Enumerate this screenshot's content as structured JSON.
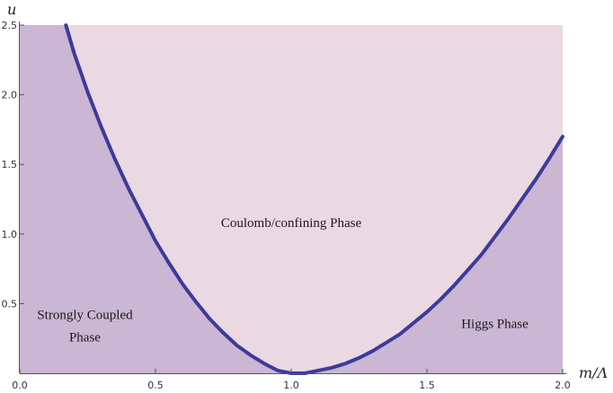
{
  "chart_data": {
    "type": "area",
    "title": "",
    "xlabel": "m/Λ",
    "ylabel": "u",
    "xlim": [
      0.0,
      2.0
    ],
    "ylim": [
      0.0,
      2.5
    ],
    "x_ticks": [
      "0.0",
      "0.5",
      "1.0",
      "1.5",
      "2.0"
    ],
    "y_ticks": [
      "0.5",
      "1.0",
      "1.5",
      "2.0",
      "2.5"
    ],
    "curve": {
      "x": [
        0.17,
        0.2,
        0.25,
        0.3,
        0.35,
        0.4,
        0.45,
        0.5,
        0.55,
        0.6,
        0.65,
        0.7,
        0.75,
        0.8,
        0.85,
        0.9,
        0.95,
        1.0,
        1.05,
        1.1,
        1.15,
        1.2,
        1.25,
        1.3,
        1.35,
        1.4,
        1.45,
        1.5,
        1.55,
        1.6,
        1.65,
        1.7,
        1.75,
        1.8,
        1.85,
        1.9,
        1.95,
        2.0
      ],
      "y": [
        2.5,
        2.3,
        2.02,
        1.77,
        1.54,
        1.33,
        1.14,
        0.95,
        0.79,
        0.64,
        0.51,
        0.39,
        0.29,
        0.2,
        0.13,
        0.07,
        0.02,
        0.0,
        0.0,
        0.02,
        0.04,
        0.07,
        0.11,
        0.16,
        0.22,
        0.28,
        0.36,
        0.44,
        0.53,
        0.63,
        0.74,
        0.85,
        0.98,
        1.11,
        1.25,
        1.39,
        1.54,
        1.7
      ]
    },
    "regions": [
      {
        "name": "Coulomb/confining Phase",
        "x": 1.0,
        "y": 1.05
      },
      {
        "name_lines": [
          "Strongly Coupled",
          "Phase"
        ],
        "x": 0.24,
        "y": 0.35
      },
      {
        "name": "Higgs Phase",
        "x": 1.75,
        "y": 0.35
      }
    ],
    "colors": {
      "upper_region": "#ead8e3",
      "lower_region": "#cbb6d3",
      "curve": "#3d3a9a"
    },
    "grid": false
  }
}
